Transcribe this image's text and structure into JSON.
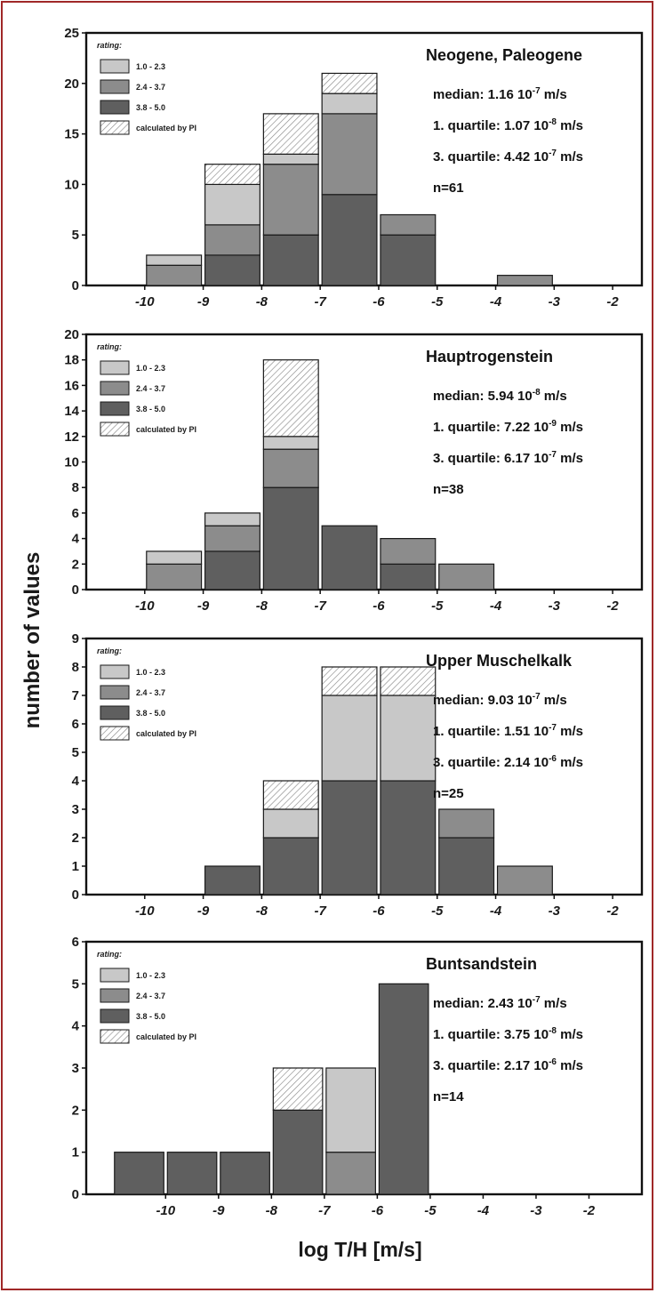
{
  "figure": {
    "ylabel": "number of values",
    "xlabel": "log T/H [m/s]",
    "legend_title": "rating:",
    "legend": [
      {
        "label": "1.0 - 2.3",
        "color": "#c8c8c8",
        "pattern": "solid"
      },
      {
        "label": "2.4 - 3.7",
        "color": "#8c8c8c",
        "pattern": "solid"
      },
      {
        "label": "3.8 - 5.0",
        "color": "#5f5f5f",
        "pattern": "solid"
      },
      {
        "label": "calculated by PI",
        "color": "#ffffff",
        "pattern": "hatch"
      }
    ]
  },
  "chart_data": [
    {
      "type": "bar",
      "title": "Neogene, Paleogene",
      "stats": [
        "median: 1.16 10",
        "1. quartile: 1.07 10",
        "3. quartile: 4.42 10"
      ],
      "stat_exps": [
        "-7",
        "-8",
        "-7"
      ],
      "stat_units": [
        "m/s",
        "m/s",
        "m/s"
      ],
      "n": "n=61",
      "ylim": [
        0,
        25
      ],
      "yticks": [
        "0",
        "5",
        "10",
        "15",
        "20",
        "25"
      ],
      "xlim": [
        -11,
        -1.5
      ],
      "xticks": [
        "-10",
        "-9",
        "-8",
        "-7",
        "-6",
        "-5",
        "-4",
        "-3",
        "-2"
      ],
      "bins": [
        {
          "x0": -10,
          "x1": -9,
          "r3": 0,
          "r2": 2,
          "r1": 1,
          "pi": 0
        },
        {
          "x0": -9,
          "x1": -8,
          "r3": 3,
          "r2": 3,
          "r1": 4,
          "pi": 2
        },
        {
          "x0": -8,
          "x1": -7,
          "r3": 5,
          "r2": 7,
          "r1": 1,
          "pi": 4
        },
        {
          "x0": -7,
          "x1": -6,
          "r3": 9,
          "r2": 8,
          "r1": 2,
          "pi": 2
        },
        {
          "x0": -6,
          "x1": -5,
          "r3": 5,
          "r2": 2,
          "r1": 0,
          "pi": 0
        },
        {
          "x0": -4,
          "x1": -3,
          "r3": 0,
          "r2": 1,
          "r1": 0,
          "pi": 0
        }
      ]
    },
    {
      "type": "bar",
      "title": "Hauptrogenstein",
      "stats": [
        "median: 5.94 10",
        "1. quartile: 7.22 10",
        "3. quartile: 6.17 10"
      ],
      "stat_exps": [
        "-8",
        "-9",
        "-7"
      ],
      "stat_units": [
        "m/s",
        "m/s",
        "m/s"
      ],
      "n": "n=38",
      "ylim": [
        0,
        20
      ],
      "yticks": [
        "0",
        "2",
        "4",
        "6",
        "8",
        "10",
        "12",
        "14",
        "16",
        "18",
        "20"
      ],
      "xlim": [
        -11,
        -1.5
      ],
      "xticks": [
        "-10",
        "-9",
        "-8",
        "-7",
        "-6",
        "-5",
        "-4",
        "-3",
        "-2"
      ],
      "bins": [
        {
          "x0": -10,
          "x1": -9,
          "r3": 0,
          "r2": 2,
          "r1": 1,
          "pi": 0
        },
        {
          "x0": -9,
          "x1": -8,
          "r3": 3,
          "r2": 2,
          "r1": 1,
          "pi": 0
        },
        {
          "x0": -8,
          "x1": -7,
          "r3": 8,
          "r2": 3,
          "r1": 1,
          "pi": 6
        },
        {
          "x0": -7,
          "x1": -6,
          "r3": 5,
          "r2": 0,
          "r1": 0,
          "pi": 0
        },
        {
          "x0": -6,
          "x1": -5,
          "r3": 2,
          "r2": 2,
          "r1": 0,
          "pi": 0
        },
        {
          "x0": -5,
          "x1": -4,
          "r3": 0,
          "r2": 2,
          "r1": 0,
          "pi": 0
        }
      ]
    },
    {
      "type": "bar",
      "title": "Upper Muschelkalk",
      "stats": [
        "median: 9.03 10",
        "1. quartile: 1.51 10",
        "3. quartile: 2.14 10"
      ],
      "stat_exps": [
        "-7",
        "-7",
        "-6"
      ],
      "stat_units": [
        "m/s",
        "m/s",
        "m/s"
      ],
      "n": "n=25",
      "ylim": [
        0,
        9
      ],
      "yticks": [
        "0",
        "1",
        "2",
        "3",
        "4",
        "5",
        "6",
        "7",
        "8",
        "9"
      ],
      "xlim": [
        -11,
        -1.5
      ],
      "xticks": [
        "-10",
        "-9",
        "-8",
        "-7",
        "-6",
        "-5",
        "-4",
        "-3",
        "-2"
      ],
      "bins": [
        {
          "x0": -9,
          "x1": -8,
          "r3": 1,
          "r2": 0,
          "r1": 0,
          "pi": 0
        },
        {
          "x0": -8,
          "x1": -7,
          "r3": 2,
          "r2": 0,
          "r1": 1,
          "pi": 1
        },
        {
          "x0": -7,
          "x1": -6,
          "r3": 4,
          "r2": 0,
          "r1": 3,
          "pi": 1
        },
        {
          "x0": -6,
          "x1": -5,
          "r3": 4,
          "r2": 0,
          "r1": 3,
          "pi": 1
        },
        {
          "x0": -5,
          "x1": -4,
          "r3": 2,
          "r2": 1,
          "r1": 0,
          "pi": 0
        },
        {
          "x0": -4,
          "x1": -3,
          "r3": 0,
          "r2": 1,
          "r1": 0,
          "pi": 0
        }
      ]
    },
    {
      "type": "bar",
      "title": "Buntsandstein",
      "stats": [
        "median: 2.43 10",
        "1. quartile: 3.75 10",
        "3. quartile: 2.17 10"
      ],
      "stat_exps": [
        "-7",
        "-8",
        "-6"
      ],
      "stat_units": [
        "m/s",
        "m/s",
        "m/s"
      ],
      "n": "n=14",
      "ylim": [
        0,
        6
      ],
      "yticks": [
        "0",
        "1",
        "2",
        "3",
        "4",
        "5",
        "6"
      ],
      "xlim": [
        -11.5,
        -1
      ],
      "xticks": [
        "-10",
        "-9",
        "-8",
        "-7",
        "-6",
        "-5",
        "-4",
        "-3",
        "-2"
      ],
      "bins": [
        {
          "x0": -11,
          "x1": -10,
          "r3": 1,
          "r2": 0,
          "r1": 0,
          "pi": 0
        },
        {
          "x0": -10,
          "x1": -9,
          "r3": 1,
          "r2": 0,
          "r1": 0,
          "pi": 0
        },
        {
          "x0": -9,
          "x1": -8,
          "r3": 1,
          "r2": 0,
          "r1": 0,
          "pi": 0
        },
        {
          "x0": -8,
          "x1": -7,
          "r3": 2,
          "r2": 0,
          "r1": 0,
          "pi": 1
        },
        {
          "x0": -7,
          "x1": -6,
          "r3": 0,
          "r2": 1,
          "r1": 2,
          "pi": 0
        },
        {
          "x0": -6,
          "x1": -5,
          "r3": 5,
          "r2": 0,
          "r1": 0,
          "pi": 0
        }
      ]
    }
  ]
}
